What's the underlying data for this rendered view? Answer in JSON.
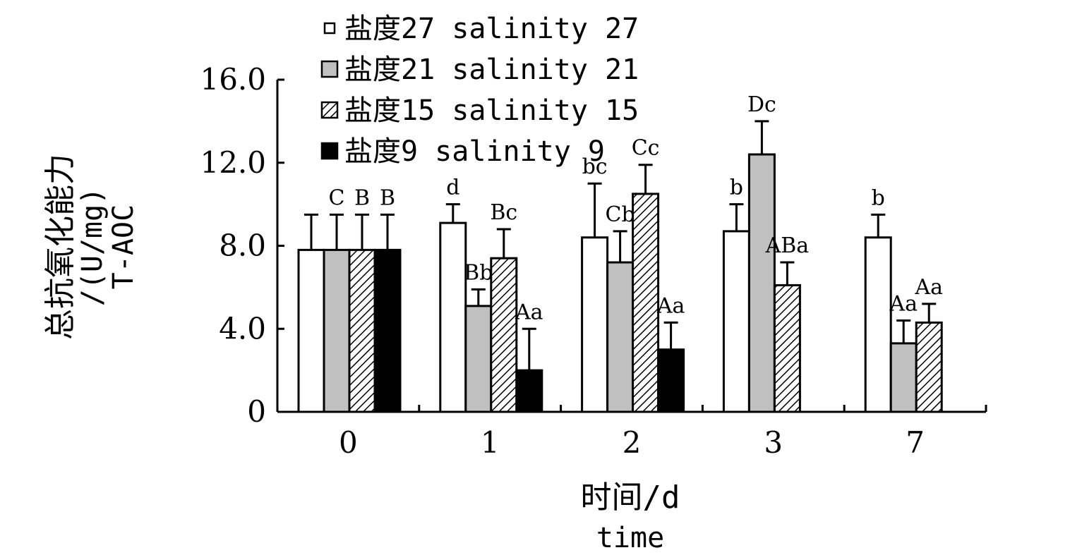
{
  "chart_data": {
    "type": "bar",
    "categories": [
      "0",
      "1",
      "2",
      "3",
      "7"
    ],
    "ylim": [
      0,
      16
    ],
    "yticks": [
      {
        "value": 0,
        "label": "0"
      },
      {
        "value": 4,
        "label": "4.0"
      },
      {
        "value": 8,
        "label": "8.0"
      },
      {
        "value": 12,
        "label": "12.0"
      },
      {
        "value": 16,
        "label": "16.0"
      }
    ],
    "xlabel": [
      "时间/d",
      "time"
    ],
    "ylabel": [
      "总抗氧化能力",
      "/(U/mg)",
      "T-AOC"
    ],
    "legend_position": "top",
    "series": [
      {
        "name": "盐度27 salinity 27",
        "fill": "white",
        "values": [
          7.8,
          9.1,
          8.4,
          8.7,
          8.4
        ],
        "errors": [
          1.7,
          0.9,
          2.6,
          1.3,
          1.1
        ],
        "labels": [
          "",
          "d",
          "bc",
          "b",
          "b"
        ]
      },
      {
        "name": "盐度21 salinity 21",
        "fill": "gray",
        "values": [
          7.8,
          5.1,
          7.2,
          12.4,
          3.3
        ],
        "errors": [
          1.7,
          0.8,
          1.5,
          1.6,
          1.1
        ],
        "labels": [
          "C",
          "Bb",
          "Cb",
          "Dc",
          "Aa"
        ]
      },
      {
        "name": "盐度15 salinity 15",
        "fill": "hatch",
        "values": [
          7.8,
          7.4,
          10.5,
          6.1,
          4.3
        ],
        "errors": [
          1.7,
          1.4,
          1.4,
          1.1,
          0.9
        ],
        "labels": [
          "B",
          "Bc",
          "Cc",
          "ABa",
          "Aa"
        ]
      },
      {
        "name": "盐度9 salinity 9",
        "fill": "black",
        "values": [
          7.8,
          2.0,
          3.0,
          null,
          null
        ],
        "errors": [
          1.7,
          2.0,
          1.3,
          null,
          null
        ],
        "labels": [
          "B",
          "Aa",
          "Aa",
          "",
          ""
        ]
      }
    ],
    "colors": {
      "gray": "#c0c0c0",
      "black": "#000000",
      "white": "#ffffff"
    }
  }
}
